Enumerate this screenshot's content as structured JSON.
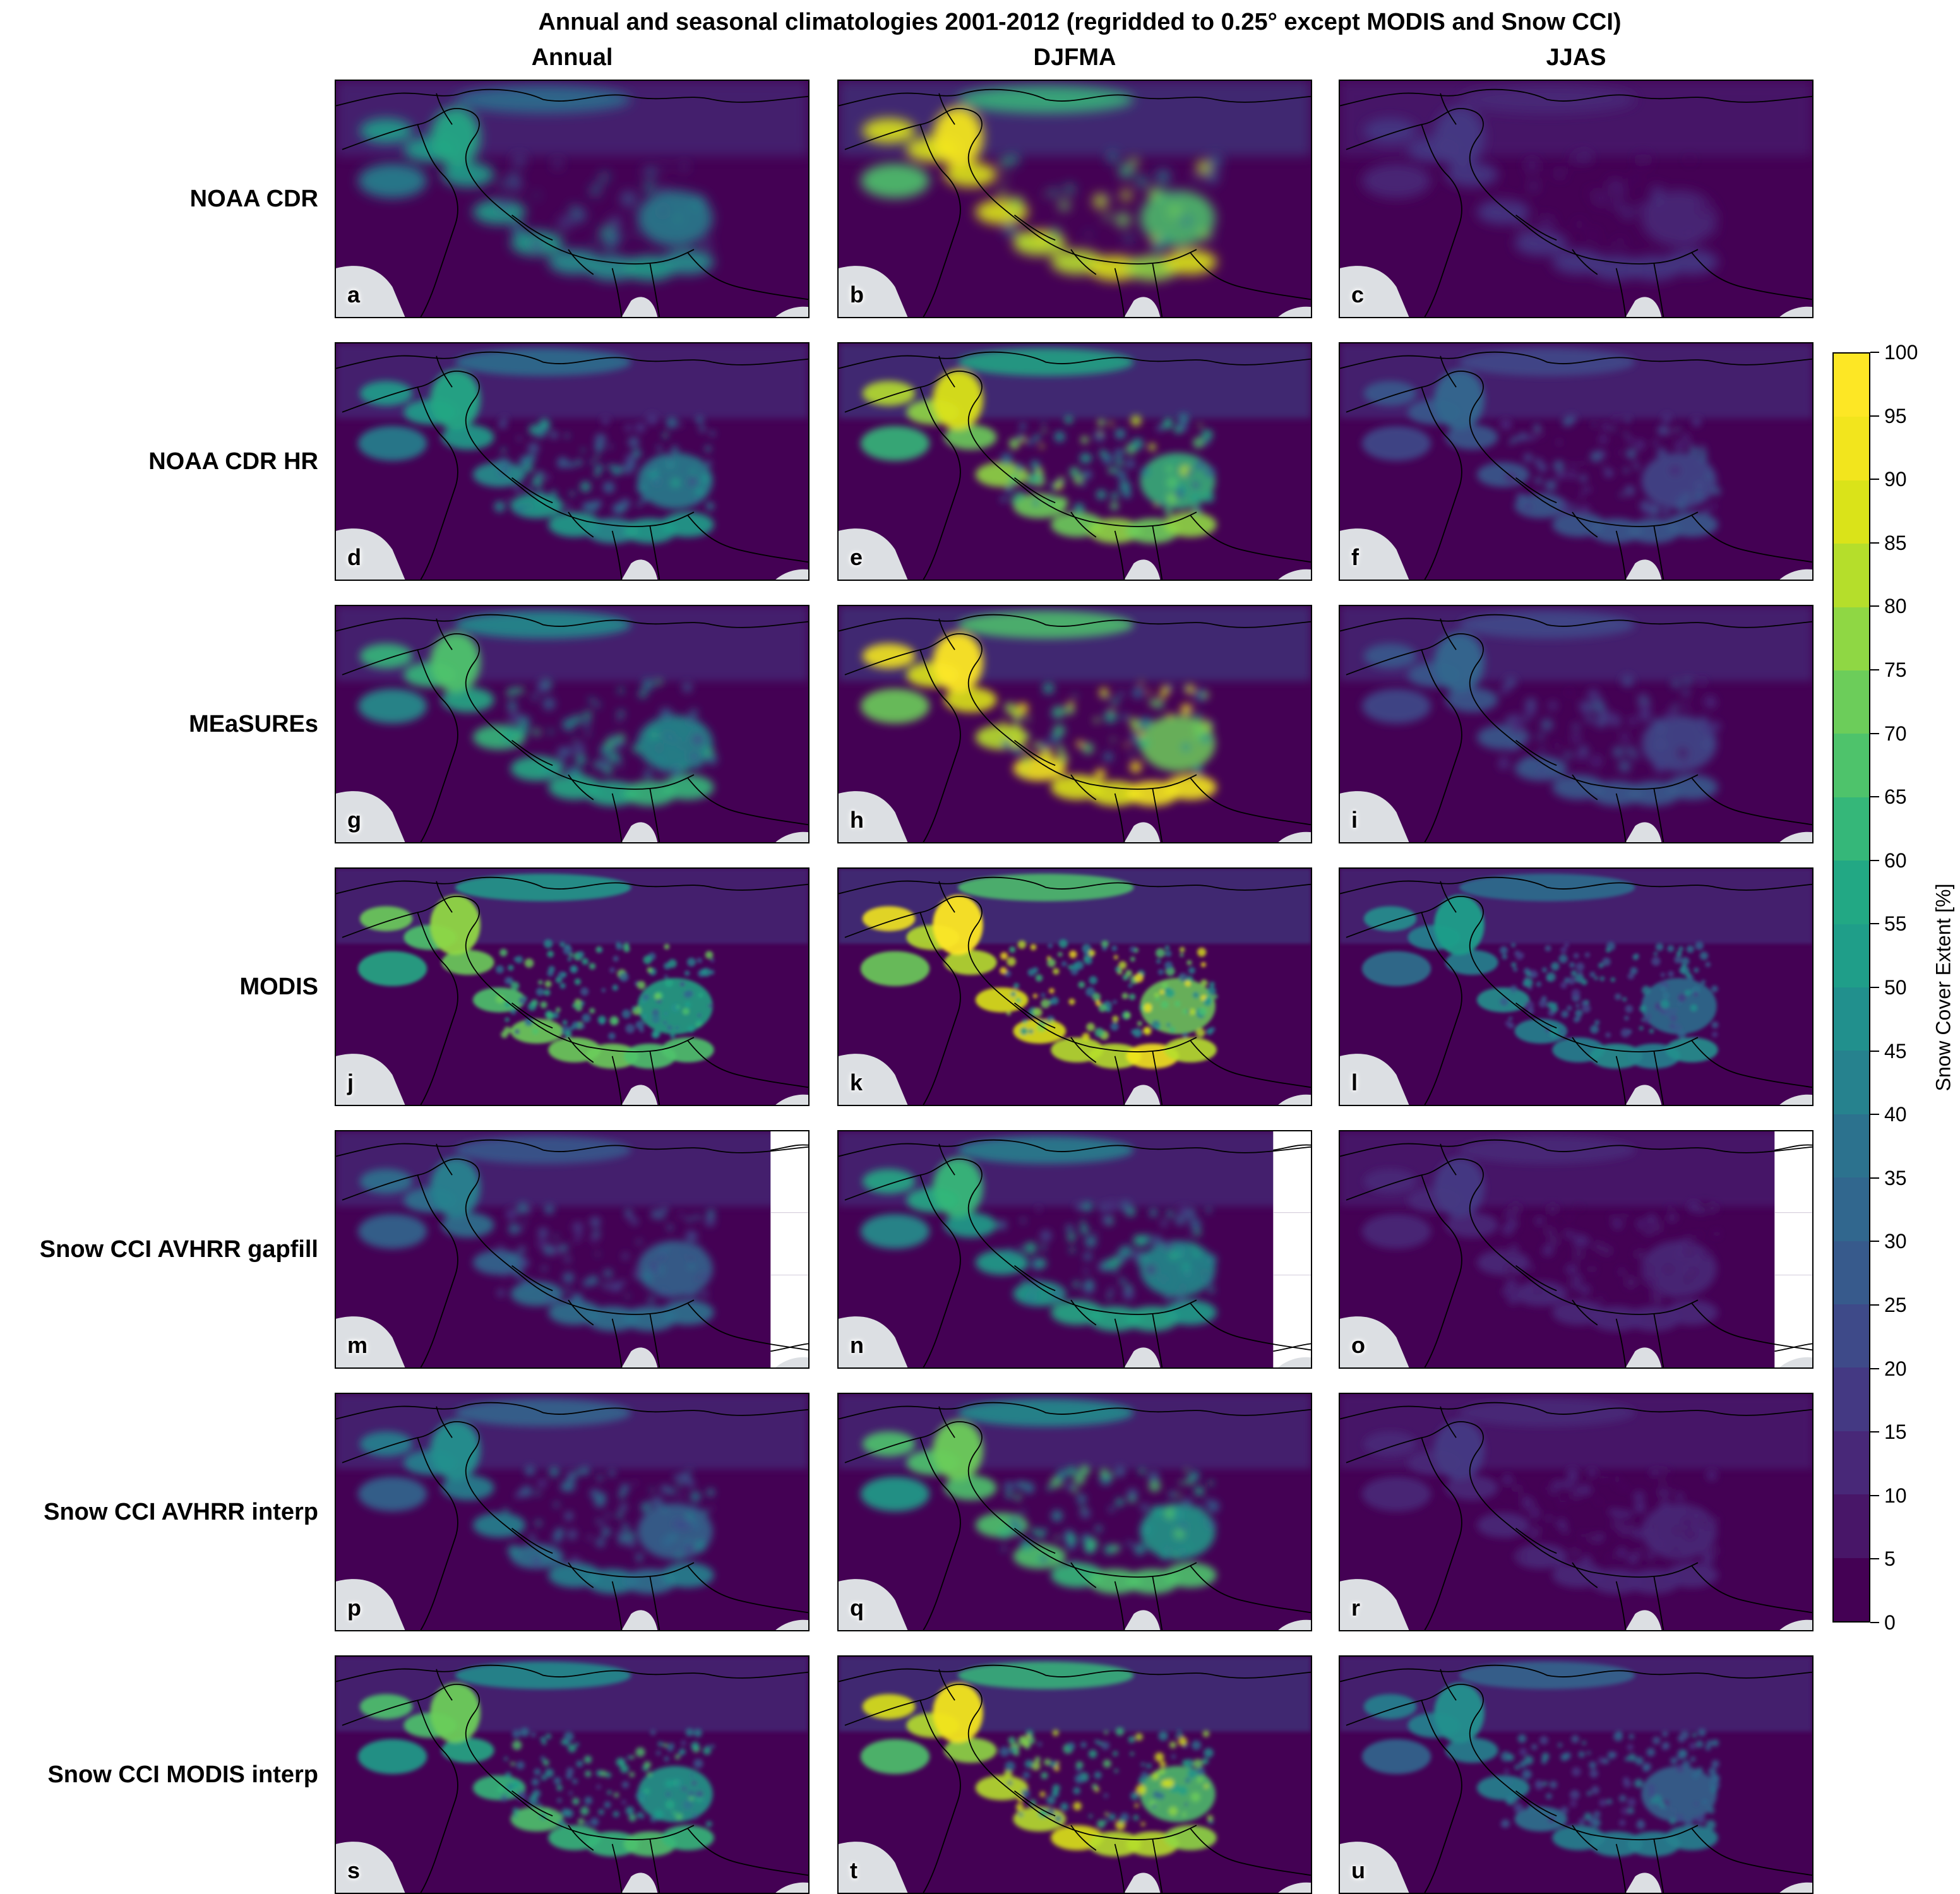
{
  "figure": {
    "title": "Annual and seasonal climatologies 2001-2012 (regridded to 0.25° except MODIS and Snow CCI)",
    "columns": [
      "Annual",
      "DJFMA",
      "JJAS"
    ],
    "rows": [
      {
        "label": "NOAA CDR",
        "panels": [
          "a",
          "b",
          "c"
        ],
        "intensity": [
          0.55,
          0.9,
          0.18
        ],
        "texture": 0.1,
        "gap": false
      },
      {
        "label": "NOAA CDR HR",
        "panels": [
          "d",
          "e",
          "f"
        ],
        "intensity": [
          0.55,
          0.85,
          0.3
        ],
        "texture": 0.55,
        "gap": false
      },
      {
        "label": "MEaSUREs",
        "panels": [
          "g",
          "h",
          "i"
        ],
        "intensity": [
          0.65,
          0.95,
          0.3
        ],
        "texture": 0.4,
        "gap": false
      },
      {
        "label": "MODIS",
        "panels": [
          "j",
          "k",
          "l"
        ],
        "intensity": [
          0.75,
          0.95,
          0.5
        ],
        "texture": 0.9,
        "gap": false
      },
      {
        "label": "Snow CCI AVHRR gapfill",
        "panels": [
          "m",
          "n",
          "o"
        ],
        "intensity": [
          0.4,
          0.6,
          0.15
        ],
        "texture": 0.5,
        "gap": true
      },
      {
        "label": "Snow CCI AVHRR interp",
        "panels": [
          "p",
          "q",
          "r"
        ],
        "intensity": [
          0.45,
          0.7,
          0.15
        ],
        "texture": 0.5,
        "gap": false
      },
      {
        "label": "Snow CCI MODIS interp",
        "panels": [
          "s",
          "t",
          "u"
        ],
        "intensity": [
          0.7,
          0.9,
          0.45
        ],
        "texture": 0.8,
        "gap": false
      }
    ]
  },
  "colorbar": {
    "label": "Snow Cover Extent [%]",
    "min": 0,
    "max": 100,
    "step": 5,
    "ticks": [
      "0",
      "5",
      "10",
      "15",
      "20",
      "25",
      "30",
      "35",
      "40",
      "45",
      "50",
      "55",
      "60",
      "65",
      "70",
      "75",
      "80",
      "85",
      "90",
      "95",
      "100"
    ],
    "colormap": "viridis",
    "colors": [
      "#440154",
      "#481668",
      "#482878",
      "#443983",
      "#3e4a89",
      "#375a8c",
      "#31678e",
      "#2c728e",
      "#26828e",
      "#21908d",
      "#1f9e89",
      "#22a884",
      "#35b779",
      "#4ec36b",
      "#6ccd5a",
      "#8fd744",
      "#b5de2b",
      "#dae319",
      "#f2e51d",
      "#fde725"
    ]
  },
  "map": {
    "ocean_color": "#dcdfe3",
    "low_color": "#440154",
    "gap_color": "#ffffff"
  }
}
